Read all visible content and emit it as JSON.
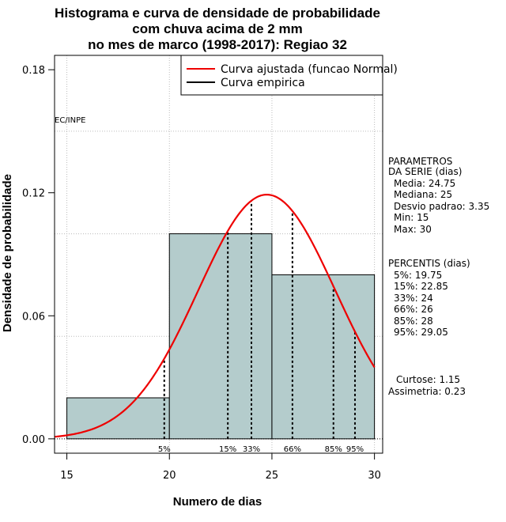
{
  "chart_data": {
    "type": "bar",
    "title_lines": [
      "Histograma e curva de densidade de probabilidade",
      "com chuva acima de 2 mm",
      "no mes de marco (1998-2017): Regiao 32"
    ],
    "xlabel": "Numero de dias",
    "ylabel": "Densidade de probabilidade",
    "xlim": [
      14.4,
      30.4
    ],
    "ylim": [
      -0.007,
      0.187
    ],
    "x_ticks": [
      15,
      20,
      25,
      30
    ],
    "y_ticks": [
      0.0,
      0.06,
      0.12,
      0.18
    ],
    "y_tick_labels": [
      "0.00",
      "0.06",
      "0.12",
      "0.18"
    ],
    "grid_x": [
      15,
      20,
      25,
      30
    ],
    "grid_y": [
      0.05,
      0.1,
      0.15
    ],
    "bins": [
      {
        "x0": 15,
        "x1": 20,
        "density": 0.02
      },
      {
        "x0": 20,
        "x1": 25,
        "density": 0.1
      },
      {
        "x0": 25,
        "x1": 30,
        "density": 0.08
      }
    ],
    "bar_color": "#b4cccc",
    "normal_curve": {
      "mean": 24.75,
      "sd": 3.35,
      "x_from": 14.4,
      "x_to": 30,
      "color": "#ee0000"
    },
    "percentile_lines": [
      {
        "label": "5%",
        "x": 19.75
      },
      {
        "label": "15%",
        "x": 22.85
      },
      {
        "label": "33%",
        "x": 24
      },
      {
        "label": "66%",
        "x": 26
      },
      {
        "label": "85%",
        "x": 28
      },
      {
        "label": "95%",
        "x": 29.05
      }
    ],
    "source_note": "EC/INPE",
    "legend": {
      "position": "top-right",
      "entries": [
        {
          "label": "Curva ajustada (funcao Normal)",
          "color": "#ee0000"
        },
        {
          "label": "Curva empirica",
          "color": "#000000"
        }
      ]
    },
    "side_panel": {
      "params_header": [
        "PARAMETROS",
        "DA SERIE (dias)"
      ],
      "params": [
        "Media: 24.75",
        "Mediana: 25",
        "Desvio padrao: 3.35",
        "Min: 15",
        "Max: 30"
      ],
      "pct_header": "PERCENTIS (dias)",
      "percentiles": [
        "5%: 19.75",
        "15%: 22.85",
        "33%: 24",
        "66%: 26",
        "85%: 28",
        "95%: 29.05"
      ],
      "curtose": "Curtose: 1.15",
      "assimetria": "Assimetria: 0.23"
    }
  }
}
